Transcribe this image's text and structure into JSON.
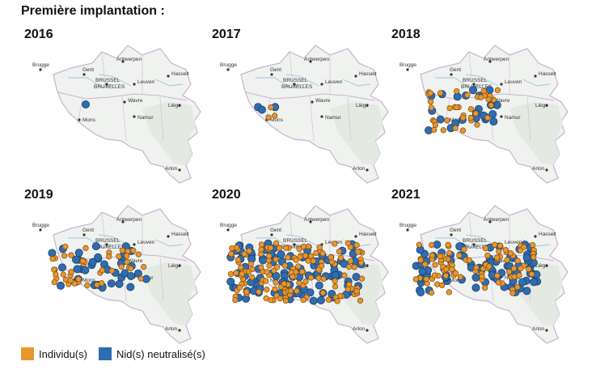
{
  "title": "Première implantation :",
  "colors": {
    "individu": "#E8962E",
    "nid": "#2E6DB0"
  },
  "legend": {
    "individu": "Individu(s)",
    "nid": "Nid(s) neutralisé(s)"
  },
  "cities": {
    "brugge": "Brugge",
    "gent": "Gent",
    "antwerpen": "Antwerpen",
    "brussel": "BRUSSEL",
    "bruxelles": "BRUXELLES",
    "leuven": "Leuven",
    "hasselt": "Hasselt",
    "wavre": "Wavre",
    "liege": "Liège",
    "mons": "Mons",
    "namur": "Namur",
    "arlon": "Arlon"
  },
  "panels": [
    {
      "year": "2016",
      "individus": 0,
      "nids": 1
    },
    {
      "year": "2017",
      "individus": 3,
      "nids": 3
    },
    {
      "year": "2018",
      "individus": 40,
      "nids": 24
    },
    {
      "year": "2019",
      "individus": 45,
      "nids": 38
    },
    {
      "year": "2020",
      "individus": 150,
      "nids": 100
    },
    {
      "year": "2021",
      "individus": 90,
      "nids": 80
    }
  ]
}
